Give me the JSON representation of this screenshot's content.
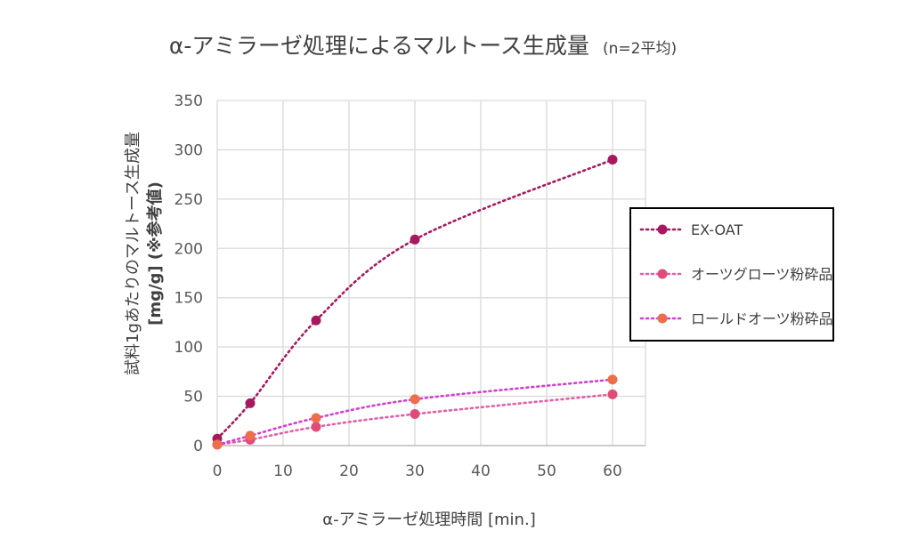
{
  "chart_data": {
    "type": "scatter",
    "title": "α-アミラーゼ処理によるマルトース生成量",
    "subtitle": "(n=2平均)",
    "xlabel": "α-アミラーゼ処理時間 [min.]",
    "ylabel": "試料1gあたりのマルトース生成量",
    "ylabel2": "[mg/g] (※参考値)",
    "xlim": [
      0,
      65
    ],
    "ylim": [
      0,
      350
    ],
    "xticks": [
      0,
      10,
      20,
      30,
      40,
      50,
      60
    ],
    "yticks": [
      0,
      50,
      100,
      150,
      200,
      250,
      300,
      350
    ],
    "grid": true,
    "legend_position": "right",
    "line_style": "dotted smooth",
    "series": [
      {
        "name": "EX-OAT",
        "color": "#A6195F",
        "x": [
          0,
          5,
          15,
          30,
          60
        ],
        "y": [
          7,
          43,
          127,
          209,
          290
        ]
      },
      {
        "name": "オーツグローツ粉砕品",
        "color": "#E14B7A",
        "line_color": "#E55EA7",
        "x": [
          0,
          5,
          15,
          30,
          60
        ],
        "y": [
          1,
          6,
          19,
          32,
          52
        ]
      },
      {
        "name": "ロールドオーツ粉砕品",
        "color": "#EC6E4B",
        "line_color": "#D53FD0",
        "x": [
          0,
          5,
          15,
          30,
          60
        ],
        "y": [
          1,
          10,
          28,
          47,
          67
        ]
      }
    ]
  }
}
